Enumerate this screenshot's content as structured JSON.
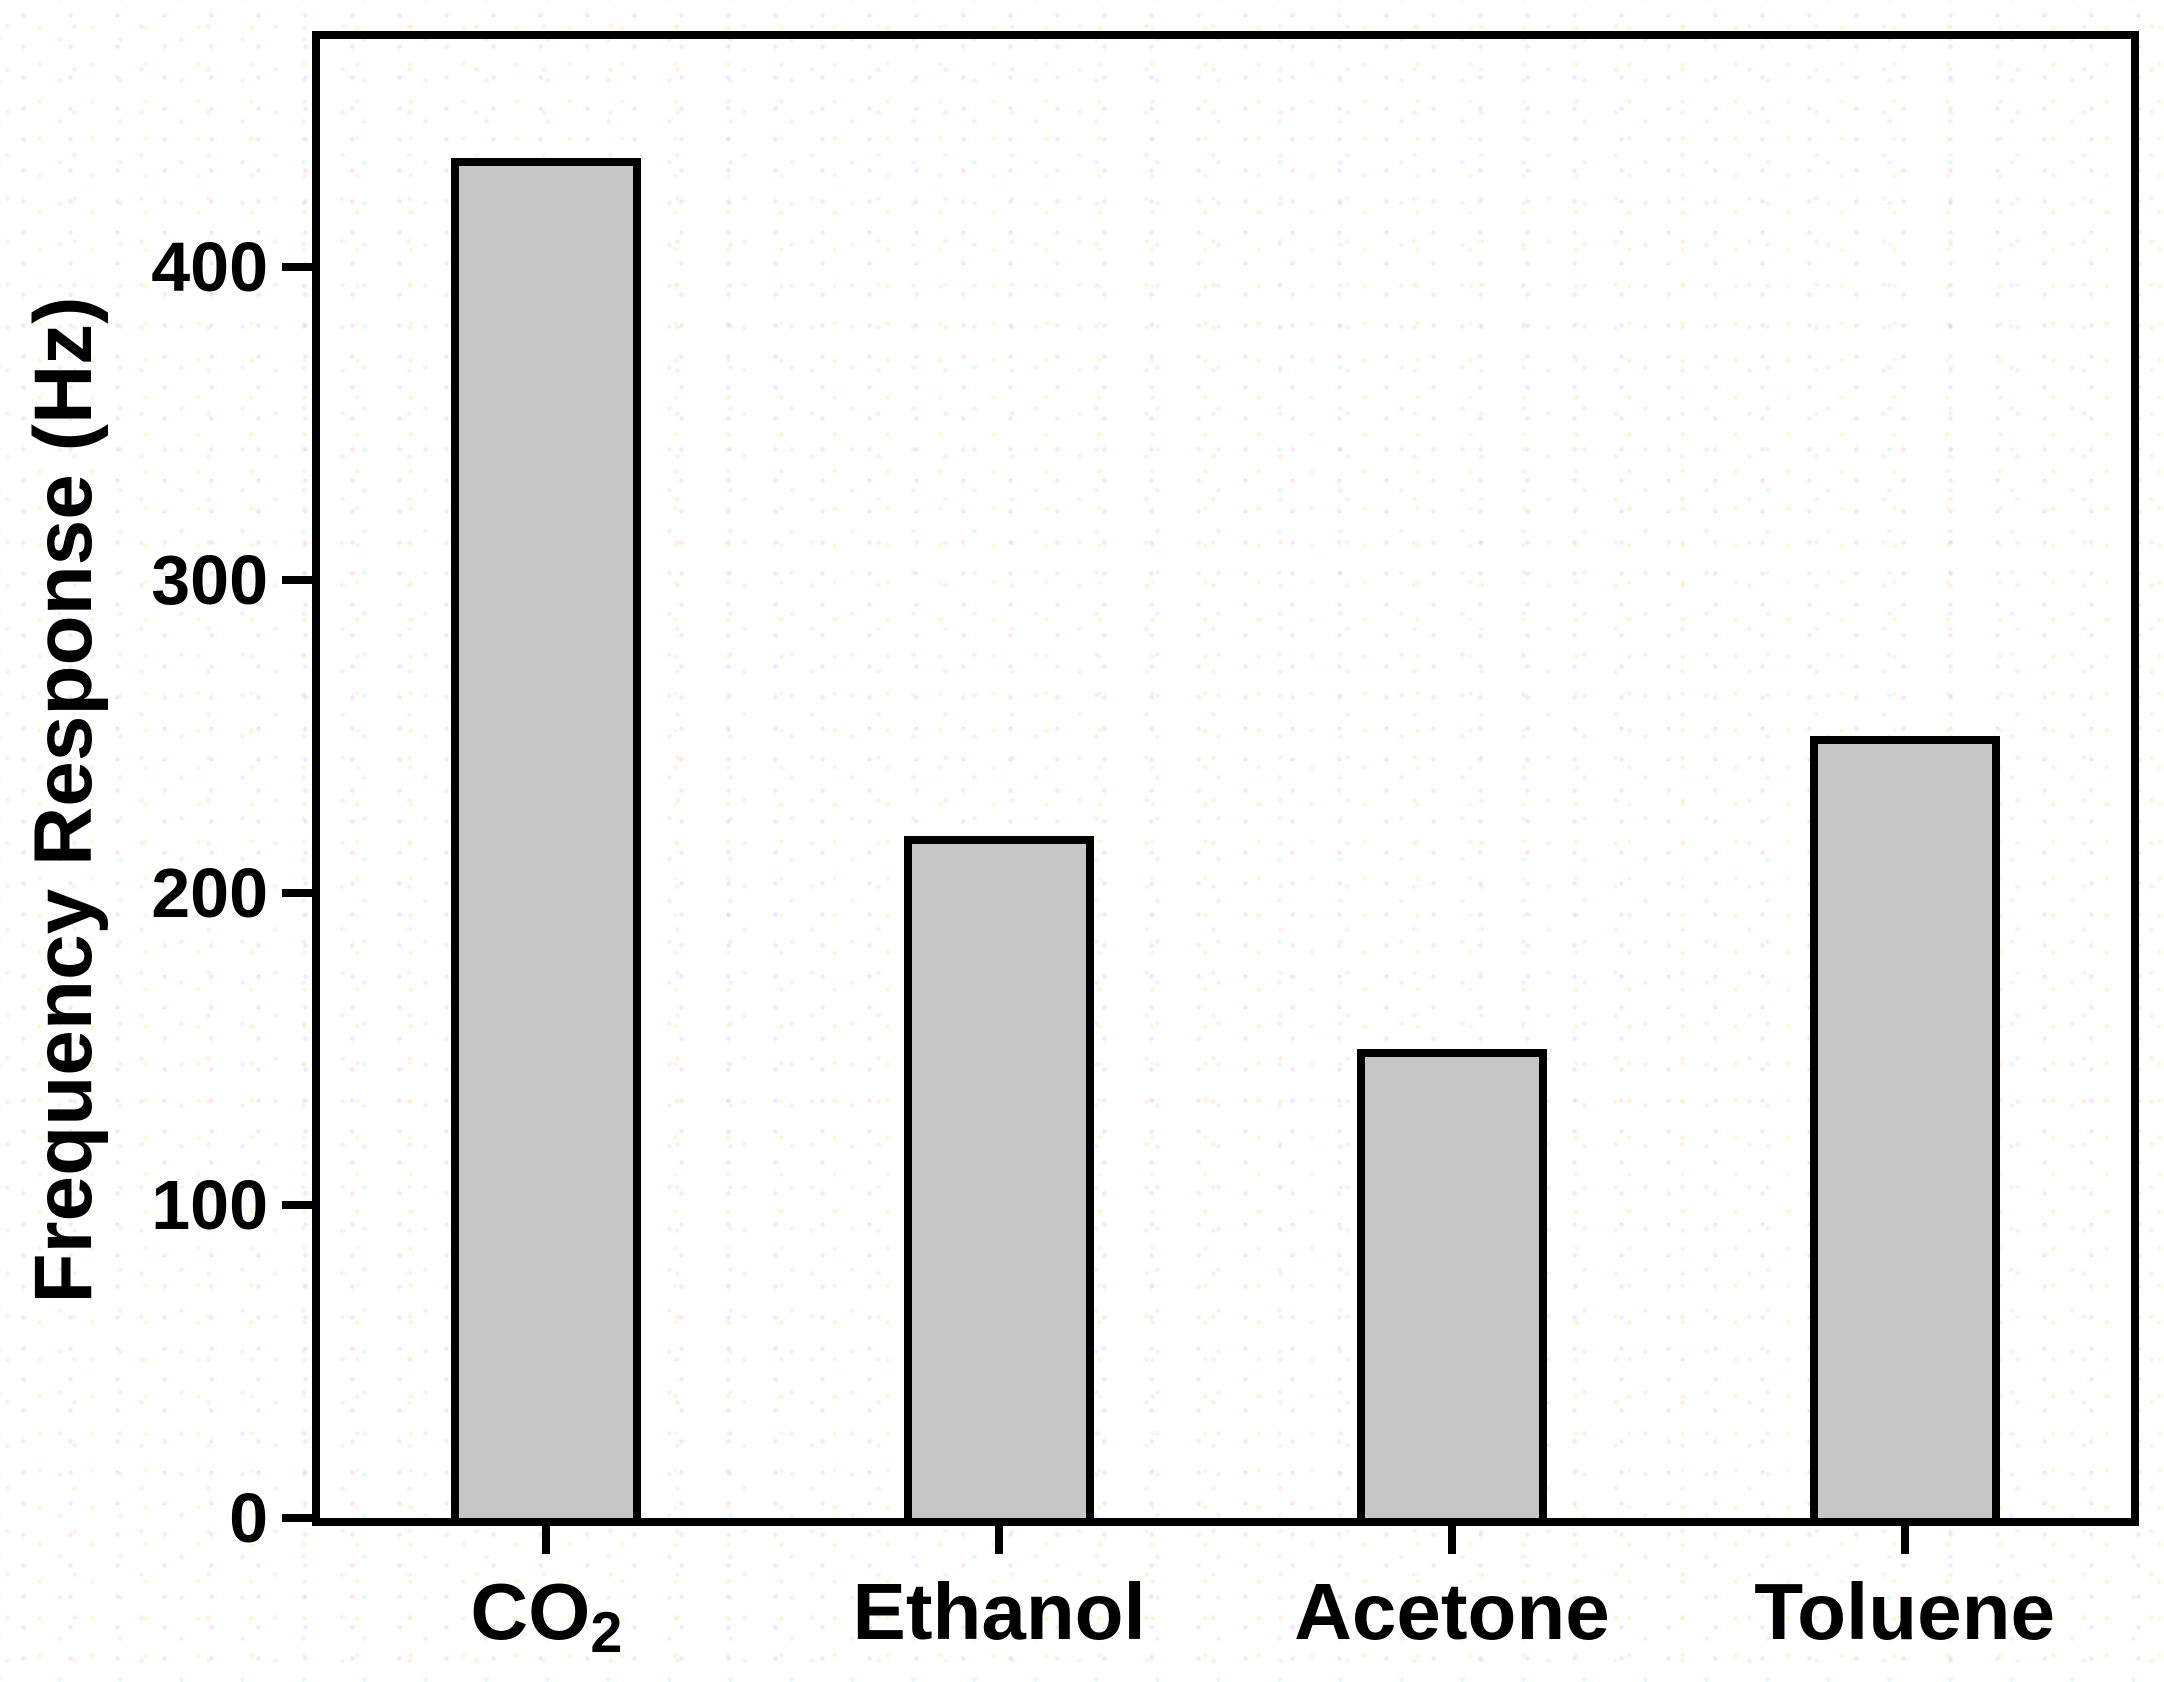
{
  "figure": {
    "frame_color": "#000000",
    "bar_fill_color": "#c6c6c6",
    "bar_border_color": "#000000",
    "text_color": "#000000",
    "background_dot_colors": [
      "#d096de",
      "#eee082",
      "#8cd6e2",
      "#fabc88"
    ]
  },
  "chart_data": {
    "type": "bar",
    "categories": [
      "CO2",
      "Ethanol",
      "Acetone",
      "Toluene"
    ],
    "category_rich": [
      {
        "base": "CO",
        "sub": "2"
      },
      {
        "base": "Ethanol",
        "sub": ""
      },
      {
        "base": "Acetone",
        "sub": ""
      },
      {
        "base": "Toluene",
        "sub": ""
      }
    ],
    "values": [
      435,
      218,
      150,
      250
    ],
    "series": [
      {
        "name": "Frequency Response",
        "values": [
          435,
          218,
          150,
          250
        ]
      }
    ],
    "title": "",
    "xlabel": "",
    "ylabel": "Frequency Response (Hz)",
    "yticks": [
      0,
      100,
      200,
      300,
      400
    ],
    "ylim": [
      0,
      473
    ],
    "bar_centers_fraction": [
      0.125,
      0.375,
      0.625,
      0.875
    ],
    "grid": false,
    "legend_position": "none"
  }
}
